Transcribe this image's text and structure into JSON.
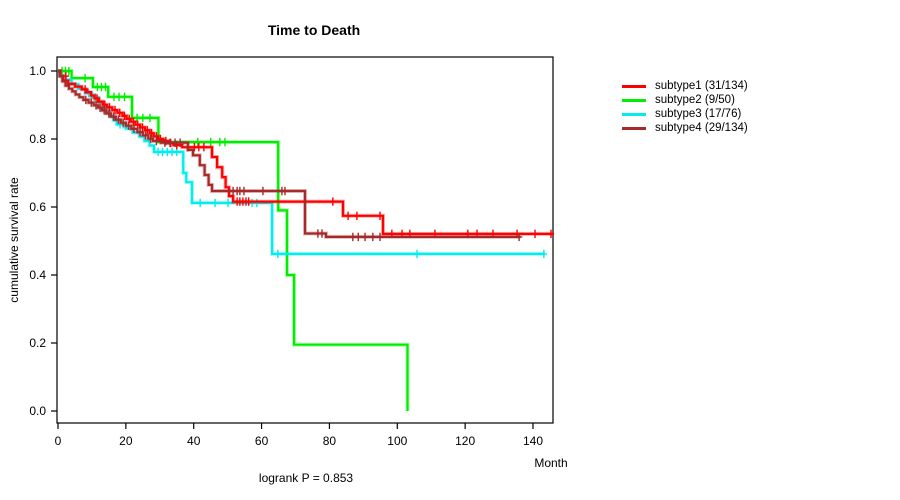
{
  "title": "Time to Death",
  "y_axis": {
    "label": "cumulative survival rate",
    "ticks": [
      "1.0",
      "0.8",
      "0.6",
      "0.4",
      "0.2",
      "0.0"
    ]
  },
  "x_axis": {
    "label": "Month",
    "ticks": [
      0,
      20,
      40,
      60,
      80,
      100,
      120,
      140
    ]
  },
  "footer": "logrank P = 0.853",
  "legend": {
    "items": [
      {
        "label": "subtype1 (31/134)",
        "color": "#FF0000"
      },
      {
        "label": "subtype2 (9/50)",
        "color": "#00EE00"
      },
      {
        "label": "subtype3 (17/76)",
        "color": "#00EEEE"
      },
      {
        "label": "subtype4 (29/134)",
        "color": "#A52A2A"
      }
    ]
  },
  "chart_data": {
    "type": "line",
    "subtype": "kaplan-meier-step",
    "title": "Time to Death",
    "xlabel": "Month",
    "ylabel": "cumulative survival rate",
    "xlim": [
      0,
      146
    ],
    "ylim": [
      0.0,
      1.0
    ],
    "x_ticks": [
      0,
      20,
      40,
      60,
      80,
      100,
      120,
      140
    ],
    "y_ticks": [
      1.0,
      0.8,
      0.6,
      0.4,
      0.2,
      0.0
    ],
    "grid": false,
    "legend_position": "right",
    "annotation": "logrank P = 0.853",
    "draw_order": [
      "subtype2",
      "subtype3",
      "subtype1",
      "subtype4"
    ],
    "series": [
      {
        "name": "subtype1 (31/134)",
        "key": "subtype1",
        "color": "#FF0000",
        "end": 145.9,
        "steps": [
          [
            0.7,
            0.985
          ],
          [
            1.6,
            0.971
          ],
          [
            3.0,
            0.962
          ],
          [
            5.0,
            0.954
          ],
          [
            7.0,
            0.946
          ],
          [
            8.5,
            0.938
          ],
          [
            9.7,
            0.928
          ],
          [
            10.8,
            0.919
          ],
          [
            12.0,
            0.91
          ],
          [
            13.2,
            0.901
          ],
          [
            14.5,
            0.893
          ],
          [
            16.0,
            0.885
          ],
          [
            17.5,
            0.877
          ],
          [
            19.0,
            0.868
          ],
          [
            20.2,
            0.859
          ],
          [
            21.4,
            0.851
          ],
          [
            22.8,
            0.842
          ],
          [
            24.2,
            0.834
          ],
          [
            25.6,
            0.826
          ],
          [
            27.0,
            0.817
          ],
          [
            28.2,
            0.808
          ],
          [
            29.5,
            0.8
          ],
          [
            31.0,
            0.794
          ],
          [
            32.5,
            0.788
          ],
          [
            34.0,
            0.782
          ],
          [
            36.6,
            0.776
          ],
          [
            45.4,
            0.747
          ],
          [
            46.9,
            0.717
          ],
          [
            48.4,
            0.688
          ],
          [
            49.4,
            0.658
          ],
          [
            50.4,
            0.632
          ],
          [
            51.6,
            0.616
          ],
          [
            84.0,
            0.574
          ],
          [
            95.8,
            0.521
          ]
        ],
        "censors": [
          [
            2.3,
            0.985
          ],
          [
            8.0,
            0.946
          ],
          [
            11.5,
            0.919
          ],
          [
            13.8,
            0.901
          ],
          [
            15.2,
            0.893
          ],
          [
            16.8,
            0.885
          ],
          [
            18.2,
            0.877
          ],
          [
            19.6,
            0.868
          ],
          [
            21.0,
            0.859
          ],
          [
            22.2,
            0.851
          ],
          [
            23.5,
            0.842
          ],
          [
            24.9,
            0.834
          ],
          [
            26.3,
            0.826
          ],
          [
            27.6,
            0.817
          ],
          [
            29.0,
            0.808
          ],
          [
            30.2,
            0.8
          ],
          [
            31.8,
            0.794
          ],
          [
            33.2,
            0.788
          ],
          [
            35.0,
            0.782
          ],
          [
            38.3,
            0.776
          ],
          [
            40.2,
            0.776
          ],
          [
            41.5,
            0.776
          ],
          [
            43.0,
            0.776
          ],
          [
            52.8,
            0.616
          ],
          [
            53.6,
            0.616
          ],
          [
            54.5,
            0.616
          ],
          [
            55.4,
            0.616
          ],
          [
            56.2,
            0.616
          ],
          [
            81.0,
            0.616
          ],
          [
            85.5,
            0.574
          ],
          [
            88.1,
            0.574
          ],
          [
            94.9,
            0.574
          ],
          [
            98.4,
            0.521
          ],
          [
            101.4,
            0.521
          ],
          [
            103.7,
            0.521
          ],
          [
            111.1,
            0.521
          ],
          [
            120.8,
            0.521
          ],
          [
            123.5,
            0.521
          ],
          [
            128.2,
            0.521
          ],
          [
            135.3,
            0.521
          ],
          [
            140.6,
            0.521
          ],
          [
            145.3,
            0.521
          ]
        ]
      },
      {
        "name": "subtype2 (9/50)",
        "key": "subtype2",
        "color": "#00EE00",
        "end": 103.0,
        "steps": [
          [
            4.0,
            0.979
          ],
          [
            10.3,
            0.953
          ],
          [
            14.8,
            0.924
          ],
          [
            21.8,
            0.862
          ],
          [
            29.6,
            0.791
          ],
          [
            64.9,
            0.59
          ],
          [
            67.5,
            0.4
          ],
          [
            69.6,
            0.195
          ],
          [
            103.0,
            0.0
          ]
        ],
        "censors": [
          [
            1.2,
            1.0
          ],
          [
            2.2,
            1.0
          ],
          [
            3.2,
            1.0
          ],
          [
            8.0,
            0.979
          ],
          [
            11.6,
            0.953
          ],
          [
            12.8,
            0.953
          ],
          [
            14.0,
            0.953
          ],
          [
            16.5,
            0.924
          ],
          [
            18.0,
            0.924
          ],
          [
            19.6,
            0.924
          ],
          [
            23.3,
            0.862
          ],
          [
            25.0,
            0.862
          ],
          [
            27.1,
            0.862
          ],
          [
            41.2,
            0.791
          ],
          [
            45.0,
            0.791
          ],
          [
            47.7,
            0.791
          ],
          [
            49.2,
            0.791
          ]
        ]
      },
      {
        "name": "subtype3 (17/76)",
        "key": "subtype3",
        "color": "#00EEEE",
        "end": 143.5,
        "steps": [
          [
            0.4,
            0.987
          ],
          [
            1.5,
            0.974
          ],
          [
            4.0,
            0.961
          ],
          [
            6.0,
            0.948
          ],
          [
            8.0,
            0.935
          ],
          [
            10.0,
            0.922
          ],
          [
            12.0,
            0.908
          ],
          [
            13.3,
            0.894
          ],
          [
            14.3,
            0.88
          ],
          [
            15.3,
            0.868
          ],
          [
            16.3,
            0.855
          ],
          [
            17.3,
            0.843
          ],
          [
            20.0,
            0.831
          ],
          [
            22.0,
            0.819
          ],
          [
            24.0,
            0.807
          ],
          [
            25.5,
            0.794
          ],
          [
            27.0,
            0.781
          ],
          [
            28.3,
            0.762
          ],
          [
            36.9,
            0.7
          ],
          [
            37.8,
            0.673
          ],
          [
            39.5,
            0.612
          ],
          [
            63.1,
            0.462
          ]
        ],
        "censors": [
          [
            2.5,
            0.974
          ],
          [
            9.0,
            0.935
          ],
          [
            11.0,
            0.922
          ],
          [
            18.3,
            0.843
          ],
          [
            19.2,
            0.843
          ],
          [
            29.5,
            0.762
          ],
          [
            30.8,
            0.762
          ],
          [
            32.2,
            0.762
          ],
          [
            33.6,
            0.762
          ],
          [
            35.0,
            0.762
          ],
          [
            41.9,
            0.612
          ],
          [
            46.3,
            0.612
          ],
          [
            50.1,
            0.612
          ],
          [
            57.2,
            0.612
          ],
          [
            58.6,
            0.612
          ],
          [
            64.8,
            0.462
          ],
          [
            105.8,
            0.462
          ],
          [
            143.2,
            0.462
          ]
        ]
      },
      {
        "name": "subtype4 (29/134)",
        "key": "subtype4",
        "color": "#A52A2A",
        "end": 136.3,
        "steps": [
          [
            0.5,
            0.985
          ],
          [
            1.3,
            0.97
          ],
          [
            2.2,
            0.957
          ],
          [
            3.2,
            0.948
          ],
          [
            4.2,
            0.94
          ],
          [
            5.2,
            0.931
          ],
          [
            6.3,
            0.923
          ],
          [
            7.5,
            0.915
          ],
          [
            9.0,
            0.907
          ],
          [
            10.5,
            0.899
          ],
          [
            11.8,
            0.892
          ],
          [
            13.0,
            0.884
          ],
          [
            14.2,
            0.875
          ],
          [
            15.6,
            0.866
          ],
          [
            17.0,
            0.857
          ],
          [
            18.5,
            0.848
          ],
          [
            20.0,
            0.839
          ],
          [
            21.6,
            0.83
          ],
          [
            23.4,
            0.82
          ],
          [
            25.0,
            0.811
          ],
          [
            26.6,
            0.801
          ],
          [
            28.0,
            0.794
          ],
          [
            30.4,
            0.789
          ],
          [
            38.3,
            0.768
          ],
          [
            39.8,
            0.752
          ],
          [
            41.8,
            0.723
          ],
          [
            43.2,
            0.694
          ],
          [
            44.4,
            0.665
          ],
          [
            45.4,
            0.647
          ],
          [
            72.8,
            0.522
          ],
          [
            79.0,
            0.512
          ]
        ],
        "censors": [
          [
            8.2,
            0.915
          ],
          [
            9.8,
            0.907
          ],
          [
            11.2,
            0.899
          ],
          [
            12.4,
            0.892
          ],
          [
            13.6,
            0.884
          ],
          [
            15.0,
            0.875
          ],
          [
            16.4,
            0.866
          ],
          [
            17.8,
            0.857
          ],
          [
            19.2,
            0.848
          ],
          [
            20.8,
            0.839
          ],
          [
            22.4,
            0.83
          ],
          [
            24.2,
            0.82
          ],
          [
            25.8,
            0.811
          ],
          [
            27.3,
            0.801
          ],
          [
            29.0,
            0.794
          ],
          [
            31.5,
            0.789
          ],
          [
            33.0,
            0.789
          ],
          [
            34.5,
            0.789
          ],
          [
            36.0,
            0.789
          ],
          [
            51.6,
            0.647
          ],
          [
            52.8,
            0.647
          ],
          [
            53.6,
            0.647
          ],
          [
            54.8,
            0.647
          ],
          [
            60.4,
            0.647
          ],
          [
            66.0,
            0.647
          ],
          [
            66.9,
            0.647
          ],
          [
            76.6,
            0.522
          ],
          [
            77.8,
            0.522
          ],
          [
            86.9,
            0.512
          ],
          [
            88.5,
            0.512
          ],
          [
            90.5,
            0.512
          ],
          [
            92.8,
            0.512
          ],
          [
            94.9,
            0.512
          ],
          [
            135.9,
            0.512
          ]
        ]
      }
    ]
  }
}
